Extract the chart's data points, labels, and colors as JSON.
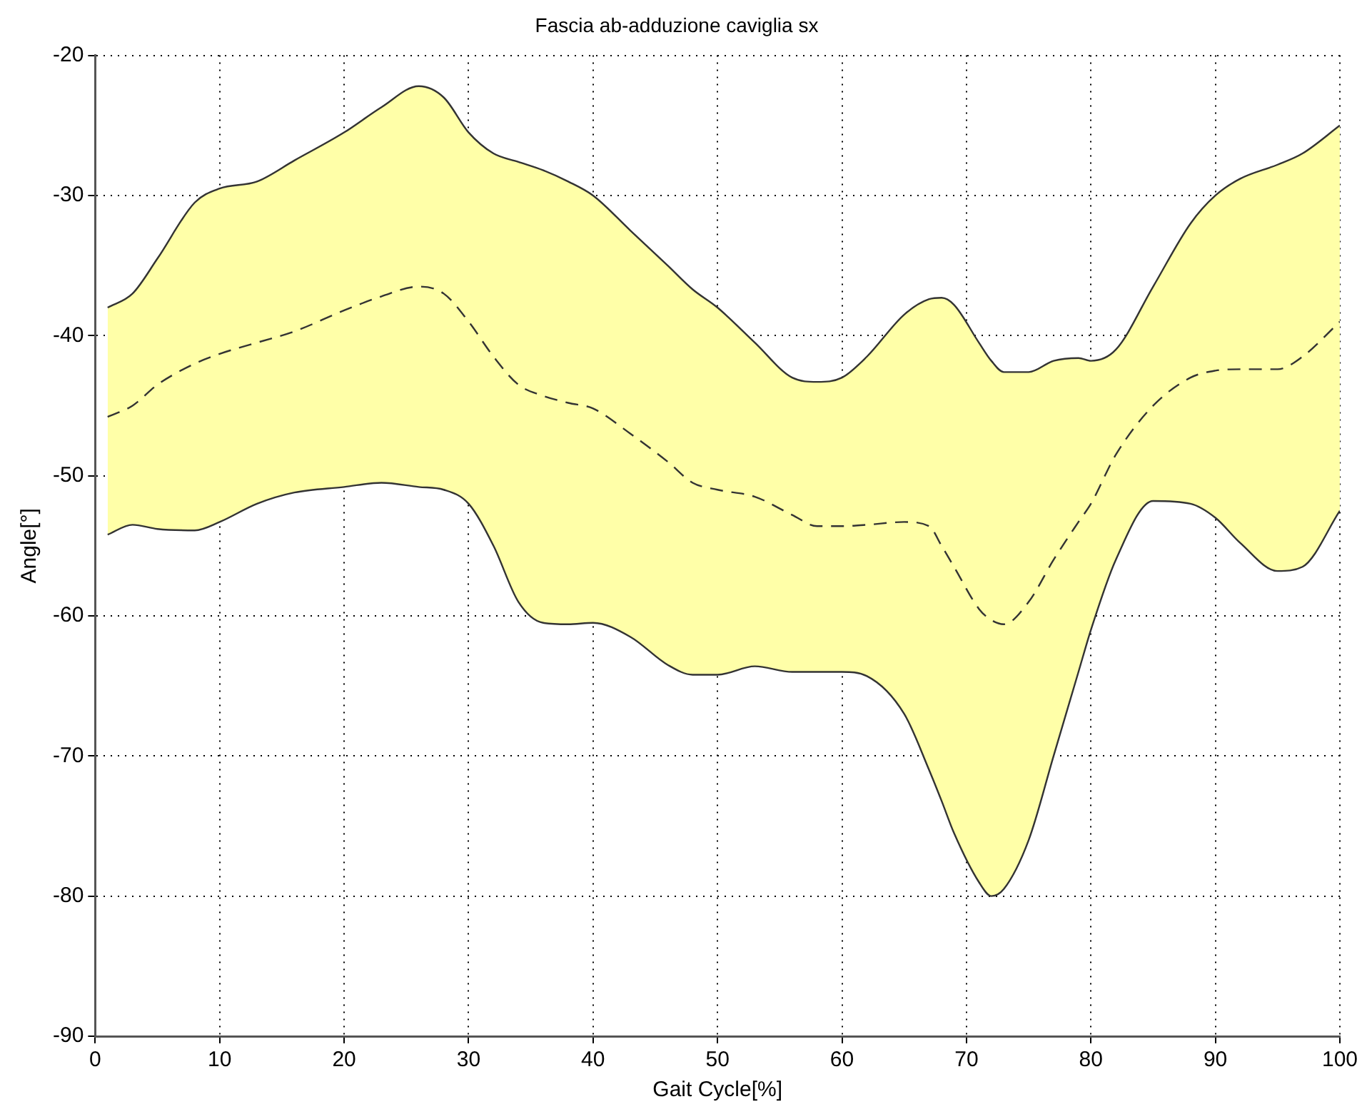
{
  "chart_data": {
    "type": "line",
    "title": "Fascia ab-adduzione caviglia sx",
    "xlabel": "Gait Cycle[%]",
    "ylabel": "Angle[°]",
    "x": [
      1,
      3,
      5,
      8,
      10,
      13,
      16,
      20,
      23,
      26,
      28,
      30,
      32,
      34,
      36,
      38,
      40,
      43,
      46,
      48,
      50,
      53,
      56,
      58,
      60,
      62,
      65,
      67,
      68,
      69,
      71,
      72,
      73,
      75,
      77,
      79,
      80,
      82,
      85,
      88,
      90,
      92,
      95,
      97,
      100
    ],
    "series": [
      {
        "color": "#333333",
        "line_style": "dashed",
        "values": [
          -45.8,
          -45,
          -43.5,
          -42,
          -41.3,
          -40.5,
          -39.7,
          -38.2,
          -37.2,
          -36.5,
          -37,
          -39,
          -41.5,
          -43.5,
          -44.3,
          -44.8,
          -45.2,
          -47,
          -49,
          -50.5,
          -51,
          -51.5,
          -52.8,
          -53.6,
          -53.6,
          -53.5,
          -53.3,
          -53.6,
          -55,
          -56.5,
          -59.5,
          -60.3,
          -60.6,
          -59,
          -56,
          -53.3,
          -52,
          -48.5,
          -45,
          -43,
          -42.5,
          -42.4,
          -42.4,
          -41.5,
          -39
        ],
        "upper": [
          -38,
          -37,
          -34.5,
          -30.5,
          -29.5,
          -29,
          -27.5,
          -25.5,
          -23.7,
          -22.2,
          -23,
          -25.5,
          -27,
          -27.6,
          -28.2,
          -29,
          -30,
          -32.5,
          -35,
          -36.7,
          -38,
          -40.5,
          -43,
          -43.3,
          -43,
          -41.5,
          -38.5,
          -37.4,
          -37.3,
          -37.8,
          -40.5,
          -41.8,
          -42.6,
          -42.6,
          -41.8,
          -41.6,
          -41.8,
          -41,
          -36.5,
          -32,
          -30,
          -28.8,
          -27.8,
          -27,
          -25
        ],
        "lower": [
          -54.2,
          -53.5,
          -53.8,
          -53.9,
          -53.3,
          -52,
          -51.2,
          -50.8,
          -50.5,
          -50.8,
          -51,
          -52,
          -55,
          -59,
          -60.5,
          -60.6,
          -60.5,
          -61.5,
          -63.5,
          -64.2,
          -64.2,
          -63.6,
          -64,
          -64,
          -64,
          -64.3,
          -67,
          -71,
          -73.2,
          -75.5,
          -79,
          -80,
          -79.5,
          -76,
          -70,
          -64,
          -61,
          -56,
          -51.8,
          -52,
          -53,
          -54.8,
          -56.8,
          -56.5,
          -52.5
        ]
      },
      {
        "color": "#333333",
        "line_style": "solid",
        "values": [
          -38,
          -37,
          -34.5,
          -30.5,
          -29.5,
          -29,
          -27.5,
          -25.5,
          -23.7,
          -22.2,
          -23,
          -25.5,
          -27,
          -27.6,
          -28.2,
          -29,
          -30,
          -32.5,
          -35,
          -36.7,
          -38,
          -40.5,
          -43,
          -43.3,
          -43,
          -41.5,
          -38.5,
          -37.4,
          -37.3,
          -37.8,
          -40.5,
          -41.8,
          -42.6,
          -42.6,
          -41.8,
          -41.6,
          -41.8,
          -41,
          -36.5,
          -32,
          -30,
          -28.8,
          -27.8,
          -27,
          -25
        ]
      },
      {
        "color": "#333333",
        "line_style": "solid",
        "values": [
          -54.2,
          -53.5,
          -53.8,
          -53.9,
          -53.3,
          -52,
          -51.2,
          -50.8,
          -50.5,
          -50.8,
          -51,
          -52,
          -55,
          -59,
          -60.5,
          -60.6,
          -60.5,
          -61.5,
          -63.5,
          -64.2,
          -64.2,
          -63.6,
          -64,
          -64,
          -64,
          -64.3,
          -67,
          -71,
          -73.2,
          -75.5,
          -79,
          -80,
          -79.5,
          -76,
          -70,
          -64,
          -61,
          -56,
          -51.8,
          -52,
          -53,
          -54.8,
          -56.8,
          -56.5,
          -52.5
        ]
      }
    ],
    "xlim": [
      0,
      100
    ],
    "xticks": [
      0,
      10,
      20,
      30,
      40,
      50,
      60,
      70,
      80,
      90,
      100
    ],
    "ylim": [
      -90,
      -20
    ],
    "yticks": [
      -90,
      -80,
      -70,
      -60,
      -50,
      -40,
      -30,
      -20
    ],
    "grid": true,
    "marker": "none",
    "legend": false
  }
}
